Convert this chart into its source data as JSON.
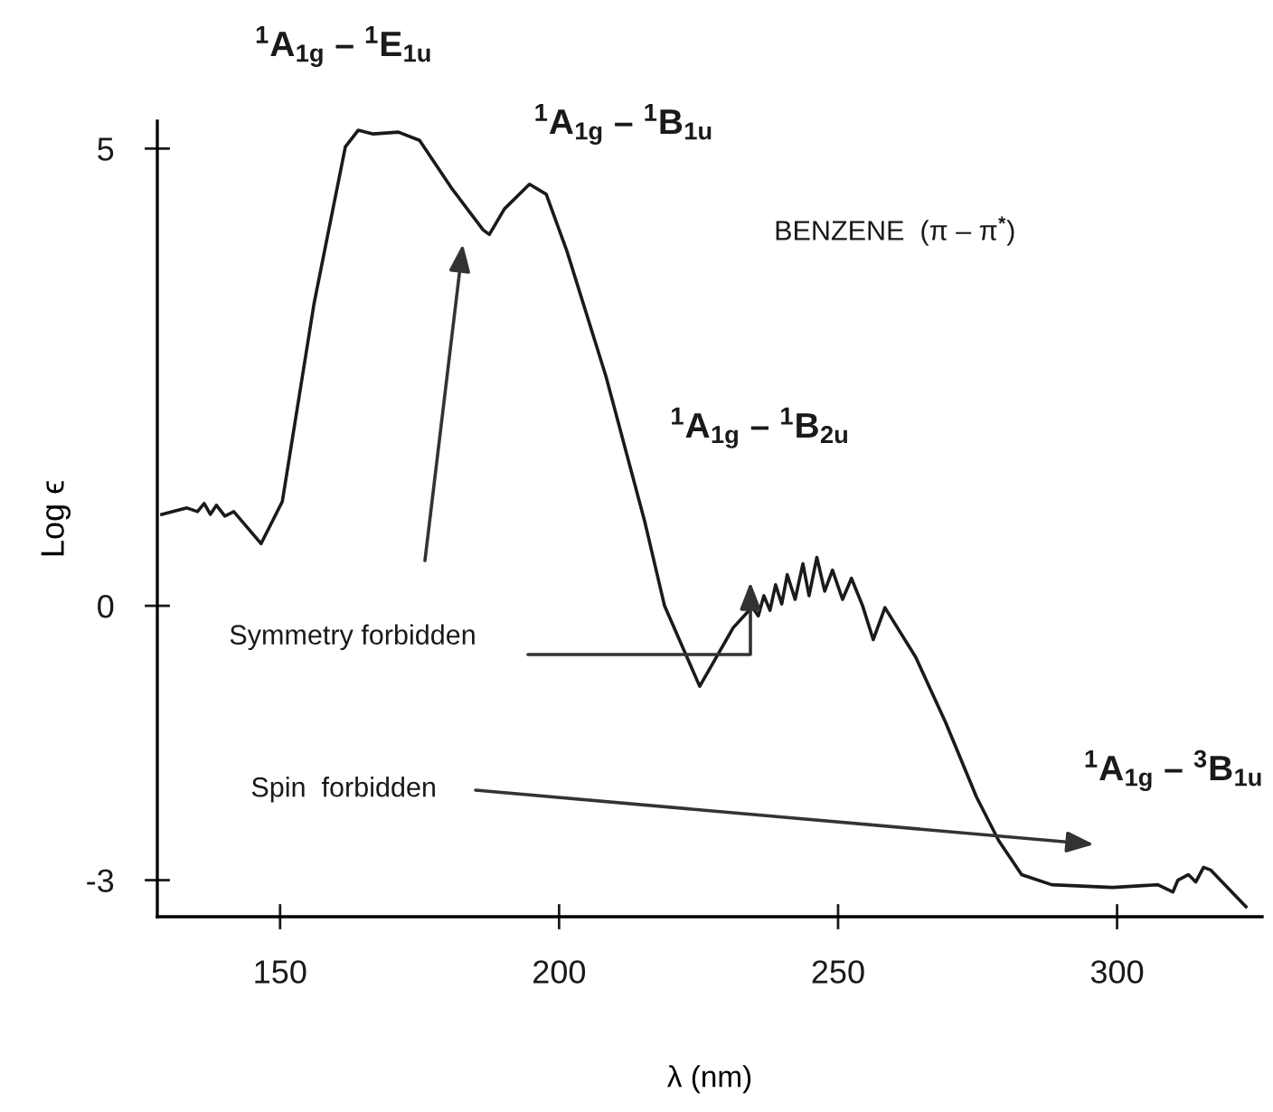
{
  "chart_data": {
    "type": "line",
    "xlabel": "λ (nm)",
    "ylabel": "Log ϵ",
    "x": [
      128.8,
      133.3,
      135.2,
      136.4,
      137.5,
      138.6,
      140.1,
      141.7,
      146.6,
      150.4,
      156.1,
      161.7,
      164,
      166.7,
      171.2,
      175,
      180.7,
      186.4,
      187.5,
      190.2,
      194.7,
      197.7,
      201.4,
      208.4,
      215.4,
      218.9,
      225.2,
      231.2,
      233.6,
      234.7,
      235.7,
      236.7,
      237.8,
      238.8,
      239.9,
      240.9,
      242.3,
      243.7,
      244.8,
      246.2,
      247.6,
      249,
      250.8,
      252.4,
      254.4,
      256.3,
      258.4,
      263.9,
      269.3,
      274.8,
      278.8,
      282.9,
      288.3,
      299.2,
      307.3,
      310,
      310.9,
      312.8,
      314.1,
      315.5,
      316.8,
      323.1
    ],
    "series": [
      {
        "color": "#1a1a1a",
        "values": [
          1.0,
          1.07,
          1.03,
          1.12,
          1.0,
          1.1,
          0.98,
          1.03,
          0.68,
          1.14,
          3.31,
          5.02,
          5.2,
          5.16,
          5.18,
          5.09,
          4.57,
          4.11,
          4.06,
          4.34,
          4.61,
          4.5,
          3.88,
          2.51,
          0.91,
          0.0,
          -0.88,
          -0.24,
          -0.08,
          -0.02,
          -0.11,
          0.11,
          -0.05,
          0.23,
          0.02,
          0.34,
          0.07,
          0.46,
          0.11,
          0.53,
          0.16,
          0.39,
          0.07,
          0.3,
          0.0,
          -0.37,
          -0.02,
          -0.56,
          -1.28,
          -2.09,
          -2.57,
          -2.94,
          -3.05,
          -3.08,
          -3.05,
          -3.13,
          -3.0,
          -2.94,
          -3.02,
          -2.86,
          -2.89,
          -3.29
        ]
      }
    ],
    "xlim": [
      128,
      326
    ],
    "ylim": [
      -3.4,
      5.3
    ],
    "xticks": [
      150,
      200,
      250,
      300
    ],
    "yticks": [
      5,
      0,
      {
        "value": -3,
        "label": "-3"
      }
    ],
    "grid": false,
    "legend": false,
    "marker": "none",
    "line_style": "solid",
    "annotations": [
      "$^{1}$A$_{1g}$ – $^{1}$E$_{1u}$",
      "$^{1}$A$_{1g}$ – $^{1}$B$_{1u}$",
      "BENZENE  (π – π$^{*}$)",
      "$^{1}$A$_{1g}$ – $^{1}$B$_{2u}$",
      "Symmetry forbidden",
      "Spin  forbidden",
      "$^{1}$A$_{1g}$ – $^{3}$B$_{1u}$"
    ]
  }
}
